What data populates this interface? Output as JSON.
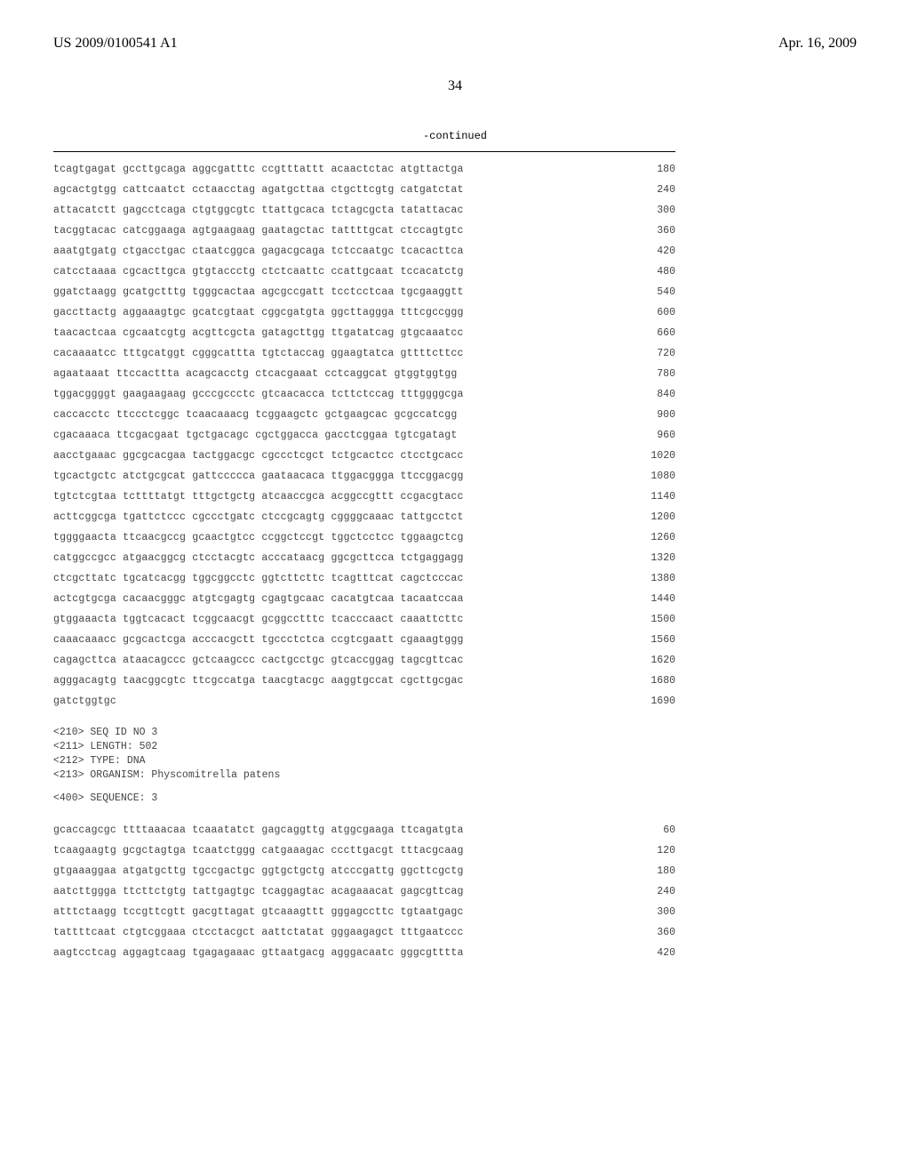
{
  "header": {
    "pub_number": "US 2009/0100541 A1",
    "pub_date": "Apr. 16, 2009",
    "page_number": "34"
  },
  "continued_label": "-continued",
  "sequence1": {
    "lines": [
      {
        "text": "tcagtgagat gccttgcaga aggcgatttc ccgtttattt acaactctac atgttactga",
        "pos": "180"
      },
      {
        "text": "agcactgtgg cattcaatct cctaacctag agatgcttaa ctgcttcgtg catgatctat",
        "pos": "240"
      },
      {
        "text": "attacatctt gagcctcaga ctgtggcgtc ttattgcaca tctagcgcta tatattacac",
        "pos": "300"
      },
      {
        "text": "tacggtacac catcggaaga agtgaagaag gaatagctac tattttgcat ctccagtgtc",
        "pos": "360"
      },
      {
        "text": "aaatgtgatg ctgacctgac ctaatcggca gagacgcaga tctccaatgc tcacacttca",
        "pos": "420"
      },
      {
        "text": "catcctaaaa cgcacttgca gtgtaccctg ctctcaattc ccattgcaat tccacatctg",
        "pos": "480"
      },
      {
        "text": "ggatctaagg gcatgctttg tgggcactaa agcgccgatt tcctcctcaa tgcgaaggtt",
        "pos": "540"
      },
      {
        "text": "gaccttactg aggaaagtgc gcatcgtaat cggcgatgta ggcttaggga tttcgccggg",
        "pos": "600"
      },
      {
        "text": "taacactcaa cgcaatcgtg acgttcgcta gatagcttgg ttgatatcag gtgcaaatcc",
        "pos": "660"
      },
      {
        "text": "cacaaaatcc tttgcatggt cgggcattta tgtctaccag ggaagtatca gttttcttcc",
        "pos": "720"
      },
      {
        "text": "agaataaat ttccacttta acagcacctg ctcacgaaat cctcaggcat gtggtggtgg",
        "pos": "780"
      },
      {
        "text": "tggacggggt gaagaagaag gcccgccctc gtcaacacca tcttctccag tttggggcga",
        "pos": "840"
      },
      {
        "text": "caccacctc ttccctcggc tcaacaaacg tcggaagctc gctgaagcac gcgccatcgg",
        "pos": "900"
      },
      {
        "text": "cgacaaaca ttcgacgaat tgctgacagc cgctggacca gacctcggaa tgtcgatagt",
        "pos": "960"
      },
      {
        "text": "aacctgaaac ggcgcacgaa tactggacgc cgccctcgct tctgcactcc ctcctgcacc",
        "pos": "1020"
      },
      {
        "text": "tgcactgctc atctgcgcat gattccccca gaataacaca ttggacggga ttccggacgg",
        "pos": "1080"
      },
      {
        "text": "tgtctcgtaa tcttttatgt tttgctgctg atcaaccgca acggccgttt ccgacgtacc",
        "pos": "1140"
      },
      {
        "text": "acttcggcga tgattctccc cgccctgatc ctccgcagtg cggggcaaac tattgcctct",
        "pos": "1200"
      },
      {
        "text": "tggggaacta ttcaacgccg gcaactgtcc ccggctccgt tggctcctcc tggaagctcg",
        "pos": "1260"
      },
      {
        "text": "catggccgcc atgaacggcg ctcctacgtc acccataacg ggcgcttcca tctgaggagg",
        "pos": "1320"
      },
      {
        "text": "ctcgcttatc tgcatcacgg tggcggcctc ggtcttcttc tcagtttcat cagctcccac",
        "pos": "1380"
      },
      {
        "text": "actcgtgcga cacaacgggc atgtcgagtg cgagtgcaac cacatgtcaa tacaatccaa",
        "pos": "1440"
      },
      {
        "text": "gtggaaacta tggtcacact tcggcaacgt gcggcctttc tcacccaact caaattcttc",
        "pos": "1500"
      },
      {
        "text": "caaacaaacc gcgcactcga acccacgctt tgccctctca ccgtcgaatt cgaaagtggg",
        "pos": "1560"
      },
      {
        "text": "cagagcttca ataacagccc gctcaagccc cactgcctgc gtcaccggag tagcgttcac",
        "pos": "1620"
      },
      {
        "text": "agggacagtg taacggcgtc ttcgccatga taacgtacgc aaggtgccat cgcttgcgac",
        "pos": "1680"
      },
      {
        "text": "gatctggtgc",
        "pos": "1690"
      }
    ]
  },
  "meta": {
    "seq_id": "<210> SEQ ID NO 3",
    "length": "<211> LENGTH: 502",
    "type": "<212> TYPE: DNA",
    "organism": "<213> ORGANISM: Physcomitrella patens",
    "sequence_label": "<400> SEQUENCE: 3"
  },
  "sequence2": {
    "lines": [
      {
        "text": "gcaccagcgc ttttaaacaa tcaaatatct gagcaggttg atggcgaaga ttcagatgta",
        "pos": "60"
      },
      {
        "text": "tcaagaagtg gcgctagtga tcaatctggg catgaaagac cccttgacgt tttacgcaag",
        "pos": "120"
      },
      {
        "text": "gtgaaaggaa atgatgcttg tgccgactgc ggtgctgctg atcccgattg ggcttcgctg",
        "pos": "180"
      },
      {
        "text": "aatcttggga ttcttctgtg tattgagtgc tcaggagtac acagaaacat gagcgttcag",
        "pos": "240"
      },
      {
        "text": "atttctaagg tccgttcgtt gacgttagat gtcaaagttt gggagccttc tgtaatgagc",
        "pos": "300"
      },
      {
        "text": "tattttcaat ctgtcggaaa ctcctacgct aattctatat gggaagagct tttgaatccc",
        "pos": "360"
      },
      {
        "text": "aagtcctcag aggagtcaag tgagagaaac gttaatgacg agggacaatc gggcgtttta",
        "pos": "420"
      }
    ]
  }
}
